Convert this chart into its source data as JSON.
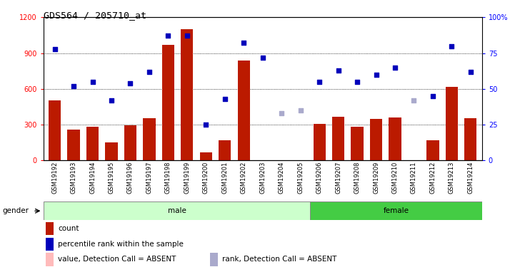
{
  "title": "GDS564 / 205710_at",
  "samples": [
    "GSM19192",
    "GSM19193",
    "GSM19194",
    "GSM19195",
    "GSM19196",
    "GSM19197",
    "GSM19198",
    "GSM19199",
    "GSM19200",
    "GSM19201",
    "GSM19202",
    "GSM19203",
    "GSM19204",
    "GSM19205",
    "GSM19206",
    "GSM19207",
    "GSM19208",
    "GSM19209",
    "GSM19210",
    "GSM19211",
    "GSM19212",
    "GSM19213",
    "GSM19214"
  ],
  "count_values": [
    500,
    260,
    280,
    150,
    295,
    355,
    970,
    1100,
    65,
    165,
    840,
    0,
    0,
    0,
    305,
    365,
    280,
    345,
    360,
    0,
    170,
    615,
    355
  ],
  "count_absent": [
    false,
    false,
    false,
    false,
    false,
    false,
    false,
    false,
    false,
    false,
    false,
    false,
    true,
    true,
    false,
    false,
    false,
    false,
    false,
    true,
    false,
    false,
    false
  ],
  "percentile_values": [
    78,
    52,
    55,
    42,
    54,
    62,
    87,
    87,
    25,
    43,
    82,
    72,
    33,
    35,
    55,
    63,
    55,
    60,
    65,
    42,
    45,
    80,
    62
  ],
  "percentile_absent": [
    false,
    false,
    false,
    false,
    false,
    false,
    false,
    false,
    false,
    false,
    false,
    false,
    true,
    true,
    false,
    false,
    false,
    false,
    false,
    true,
    false,
    false,
    false
  ],
  "male_count": 14,
  "female_count": 9,
  "ylim_left": [
    0,
    1200
  ],
  "ylim_right": [
    0,
    100
  ],
  "yticks_left": [
    0,
    300,
    600,
    900,
    1200
  ],
  "yticks_right": [
    0,
    25,
    50,
    75,
    100
  ],
  "bar_color_present": "#bb1a00",
  "bar_color_absent": "#ffbbbb",
  "dot_color_present": "#0000bb",
  "dot_color_absent": "#aaaacc",
  "male_bg": "#ccffcc",
  "female_bg": "#44cc44",
  "xtick_bg": "#cccccc",
  "gender_label_bg": "#cccccc"
}
